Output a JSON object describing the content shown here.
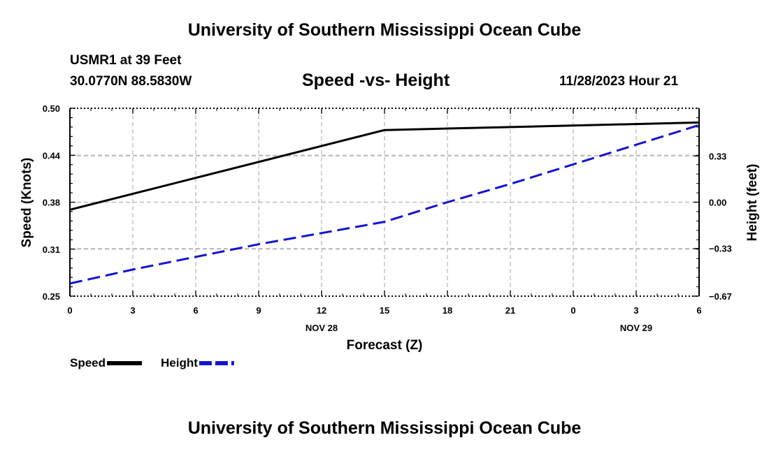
{
  "header": {
    "title": "University of Southern Mississippi Ocean Cube",
    "station": "USMR1 at 39 Feet",
    "coords": "30.0770N  88.5830W",
    "subtitle": "Speed -vs- Height",
    "datetime": "11/28/2023 Hour 21"
  },
  "footer": {
    "title": "University of Southern Mississippi Ocean Cube"
  },
  "chart_data": {
    "type": "line",
    "title": "Speed -vs- Height",
    "xlabel": "Forecast (Z)",
    "ylabel": "Speed (Knots)",
    "y2label": "Height (feet)",
    "x_hours": [
      0,
      3,
      6,
      9,
      12,
      15,
      18,
      21,
      24,
      27,
      30
    ],
    "x_tick_labels": [
      "0",
      "3",
      "6",
      "9",
      "12",
      "15",
      "18",
      "21",
      "0",
      "3",
      "6"
    ],
    "date_labels": [
      {
        "hour": 12,
        "label": "NOV 28"
      },
      {
        "hour": 27,
        "label": "NOV 29"
      }
    ],
    "xlim": [
      0,
      30
    ],
    "ylim": [
      0.25,
      0.5
    ],
    "y_tick_labels": [
      "0.25",
      "0.31",
      "0.38",
      "0.44",
      "0.50"
    ],
    "y2lim": [
      -0.67,
      0.67
    ],
    "y2_tick_labels": [
      "-0.67",
      "-0.33",
      "0.00",
      "0.33"
    ],
    "grid": true,
    "legend": [
      {
        "name": "Speed",
        "color": "#000000",
        "style": "solid"
      },
      {
        "name": "Height",
        "color": "#1414cc",
        "style": "dashed"
      }
    ],
    "series": [
      {
        "name": "Speed",
        "axis": "left",
        "color": "#000000",
        "style": "solid",
        "x": [
          0,
          15,
          30
        ],
        "values": [
          0.365,
          0.471,
          0.481
        ]
      },
      {
        "name": "Height",
        "axis": "right",
        "color": "#1414cc",
        "style": "dashed",
        "x": [
          0,
          3,
          6,
          9,
          12,
          15,
          18,
          21,
          24,
          27,
          30
        ],
        "values": [
          -0.58,
          -0.48,
          -0.39,
          -0.3,
          -0.22,
          -0.14,
          0.0,
          0.13,
          0.27,
          0.41,
          0.55
        ]
      }
    ]
  }
}
